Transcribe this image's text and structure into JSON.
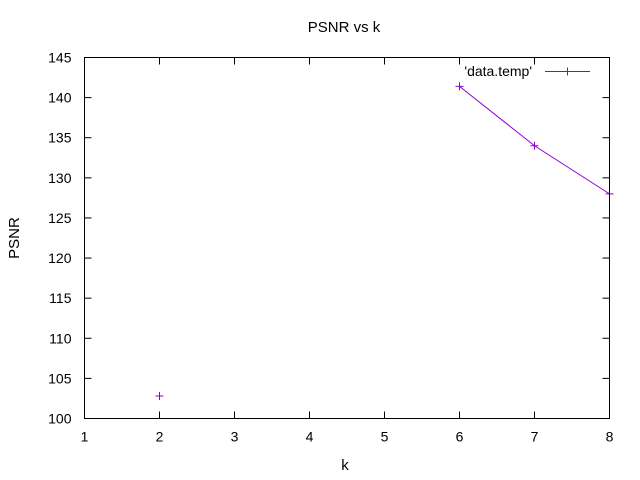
{
  "chart_data": {
    "type": "line",
    "title": "PSNR vs k",
    "xlabel": "k",
    "ylabel": "PSNR",
    "xlim": [
      1,
      8
    ],
    "ylim": [
      100,
      145
    ],
    "xticks": [
      1,
      2,
      3,
      4,
      5,
      6,
      7,
      8
    ],
    "yticks": [
      100,
      105,
      110,
      115,
      120,
      125,
      130,
      135,
      140,
      145
    ],
    "grid": false,
    "legend_position": "top-right",
    "series": [
      {
        "name": "'data.temp'",
        "color": "#9400d3",
        "marker": "plus",
        "points": [
          {
            "x": 2,
            "y": 102.8
          },
          {
            "x": 6,
            "y": 141.4
          },
          {
            "x": 7,
            "y": 134.0
          },
          {
            "x": 8,
            "y": 128.0
          }
        ],
        "segments": [
          [
            1,
            2,
            3
          ]
        ]
      }
    ]
  }
}
